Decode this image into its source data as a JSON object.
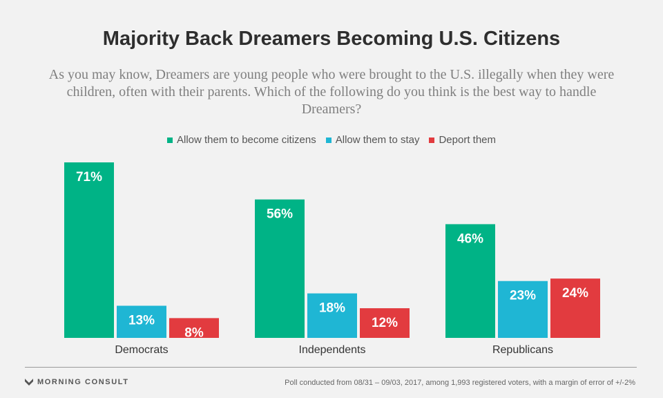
{
  "footer": {
    "brand": "MORNING CONSULT",
    "source": "Poll conducted from 08/31 – 09/03, 2017, among 1,993 registered voters, with a margin of error of +/-2%"
  },
  "chart_data": {
    "type": "bar",
    "title": "Majority Back Dreamers Becoming U.S. Citizens",
    "subtitle": "As you may know, Dreamers are young people who were brought to the U.S. illegally when they were children, often with their parents. Which of the following do you think is the best way to handle Dreamers?",
    "categories": [
      "Democrats",
      "Independents",
      "Republicans"
    ],
    "series": [
      {
        "name": "Allow them to become citizens",
        "color": "#00b386",
        "values": [
          71,
          56,
          46
        ],
        "labels": [
          "71%",
          "56%",
          "46%"
        ]
      },
      {
        "name": "Allow them to stay",
        "color": "#1fb6d4",
        "values": [
          13,
          18,
          23
        ],
        "labels": [
          "13%",
          "18%",
          "23%"
        ]
      },
      {
        "name": "Deport them",
        "color": "#e23b3f",
        "values": [
          8,
          12,
          24
        ],
        "labels": [
          "8%",
          "12%",
          "24%"
        ]
      }
    ],
    "ylim": [
      0,
      71
    ],
    "legend": "top-center"
  }
}
